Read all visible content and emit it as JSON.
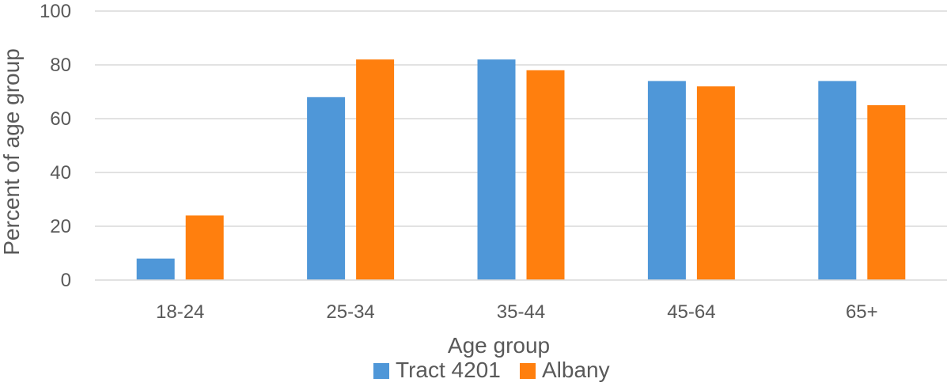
{
  "chart_data": {
    "type": "bar",
    "title": "",
    "xlabel": "Age group",
    "ylabel": "Percent of age group",
    "categories": [
      "18-24",
      "25-34",
      "35-44",
      "45-64",
      "65+"
    ],
    "series": [
      {
        "name": "Tract 4201",
        "color": "#4f97d8",
        "values": [
          8,
          68,
          82,
          74,
          74
        ]
      },
      {
        "name": "Albany",
        "color": "#ff7f0e",
        "values": [
          24,
          82,
          78,
          72,
          65
        ]
      }
    ],
    "ylim": [
      0,
      100
    ],
    "yticks": [
      0,
      20,
      40,
      60,
      80,
      100
    ],
    "grid": true,
    "legend_position": "bottom"
  }
}
